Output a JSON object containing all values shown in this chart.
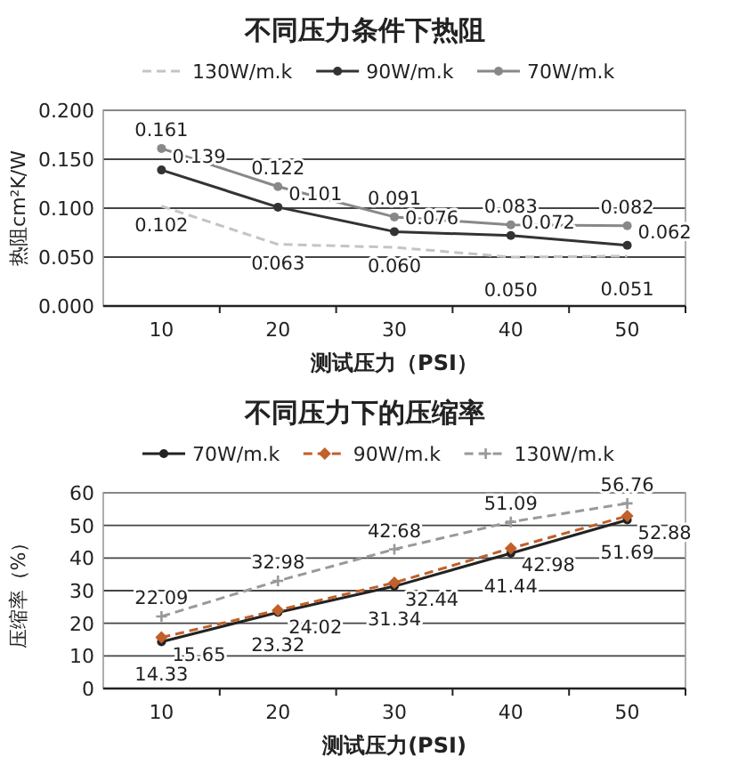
{
  "chart_data": [
    {
      "type": "line",
      "title": "不同压力条件下热阻",
      "xlabel": "测试压力（PSI）",
      "ylabel": "热阻cm²K/W",
      "categories": [
        "10",
        "20",
        "30",
        "40",
        "50"
      ],
      "ylim": [
        0,
        0.2
      ],
      "yticks": [
        {
          "value": 0,
          "label": "0.000"
        },
        {
          "value": 0.05,
          "label": "0.050"
        },
        {
          "value": 0.1,
          "label": "0.100"
        },
        {
          "value": 0.15,
          "label": "0.150"
        },
        {
          "value": 0.2,
          "label": "0.200"
        }
      ],
      "grid": "y",
      "legend": "top",
      "series": [
        {
          "name": "130W/m.k",
          "color": "#c4c4c4",
          "line_style": "dashed",
          "marker": "none",
          "values": [
            0.102,
            0.063,
            0.06,
            0.05,
            0.051
          ],
          "value_labels": [
            "0.102",
            "0.063",
            "0.060",
            "0.050",
            "0.051"
          ]
        },
        {
          "name": "90W/m.k",
          "color": "#333333",
          "line_style": "solid",
          "marker": "circle",
          "values": [
            0.139,
            0.101,
            0.076,
            0.072,
            0.062
          ],
          "value_labels": [
            "0.139",
            "0.101",
            "0.076",
            "0.072",
            "0.062"
          ]
        },
        {
          "name": "70W/m.k",
          "color": "#888888",
          "line_style": "solid",
          "marker": "circle",
          "values": [
            0.161,
            0.122,
            0.091,
            0.083,
            0.082
          ],
          "value_labels": [
            "0.161",
            "0.122",
            "0.091",
            "0.083",
            "0.082"
          ]
        }
      ]
    },
    {
      "type": "line",
      "title": "不同压力下的压缩率",
      "xlabel": "测试压力(PSI)",
      "ylabel": "压缩率（%）",
      "categories": [
        "10",
        "20",
        "30",
        "40",
        "50"
      ],
      "ylim": [
        0,
        60
      ],
      "yticks": [
        0,
        10,
        20,
        30,
        40,
        50,
        60
      ],
      "grid": "y",
      "legend": "top",
      "data_labels": true,
      "series": [
        {
          "name": "70W/m.k",
          "color": "#222222",
          "line_style": "solid",
          "marker": "circle",
          "values": [
            14.33,
            23.32,
            31.34,
            41.44,
            51.69
          ]
        },
        {
          "name": "90W/m.k",
          "color": "#c0602a",
          "line_style": "dashed",
          "marker": "diamond",
          "values": [
            15.65,
            24.02,
            32.44,
            42.98,
            52.88
          ]
        },
        {
          "name": "130W/m.k",
          "color": "#999999",
          "line_style": "dashed",
          "marker": "cross",
          "values": [
            22.09,
            32.98,
            42.68,
            51.09,
            56.76
          ]
        }
      ]
    }
  ]
}
